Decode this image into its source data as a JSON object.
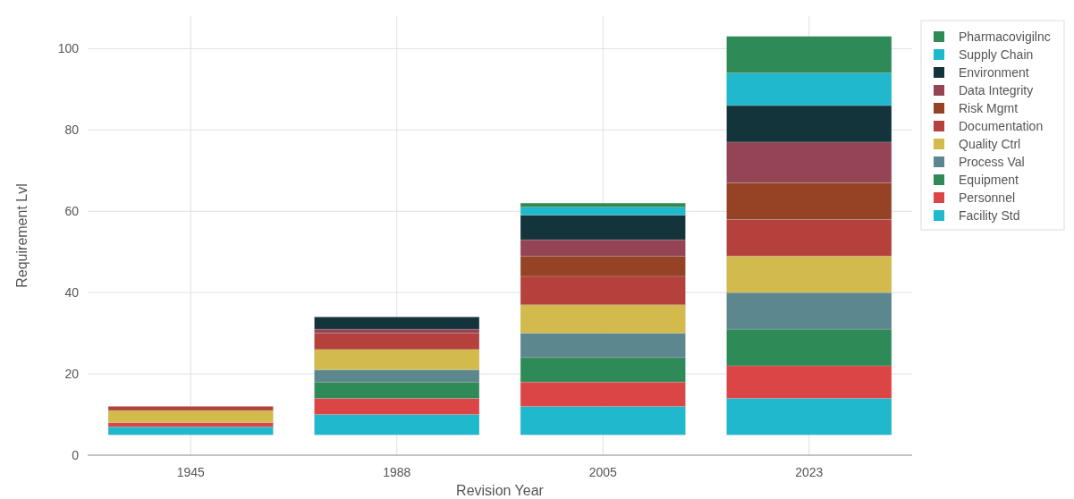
{
  "chart_data": {
    "type": "bar",
    "stacked": true,
    "xlabel": "Revision Year",
    "ylabel": "Requirement Lvl",
    "categories": [
      "1945",
      "1988",
      "2005",
      "2023"
    ],
    "ylim": [
      0,
      108
    ],
    "yticks": [
      0,
      20,
      40,
      60,
      80,
      100
    ],
    "grid": true,
    "legend": "top right",
    "series": [
      {
        "name": "Facility Std",
        "color": "#1fb8cd",
        "values": [
          2,
          5,
          7,
          9
        ],
        "base": [
          5,
          5,
          5,
          5
        ]
      },
      {
        "name": "Personnel",
        "color": "#db4545",
        "values": [
          1,
          4,
          6,
          8
        ]
      },
      {
        "name": "Equipment",
        "color": "#2e8b57",
        "values": [
          0,
          4,
          6,
          9
        ]
      },
      {
        "name": "Process Val",
        "color": "#5d878f",
        "values": [
          0,
          3,
          6,
          9
        ]
      },
      {
        "name": "Quality Ctrl",
        "color": "#d2ba4c",
        "values": [
          3,
          5,
          7,
          9
        ]
      },
      {
        "name": "Documentation",
        "color": "#b4413c",
        "values": [
          1,
          4,
          7,
          9
        ]
      },
      {
        "name": "Risk Mgmt",
        "color": "#964325",
        "values": [
          0,
          0,
          5,
          9
        ]
      },
      {
        "name": "Data Integrity",
        "color": "#944454",
        "values": [
          0,
          1,
          4,
          10
        ]
      },
      {
        "name": "Environment",
        "color": "#13343b",
        "values": [
          0,
          3,
          6,
          9
        ]
      },
      {
        "name": "Supply Chain",
        "color": "#20b8cc",
        "values": [
          0,
          0,
          2,
          8
        ]
      },
      {
        "name": "Pharmacovigilnc",
        "color": "#2e8b57",
        "values": [
          0,
          0,
          1,
          9
        ]
      }
    ]
  }
}
